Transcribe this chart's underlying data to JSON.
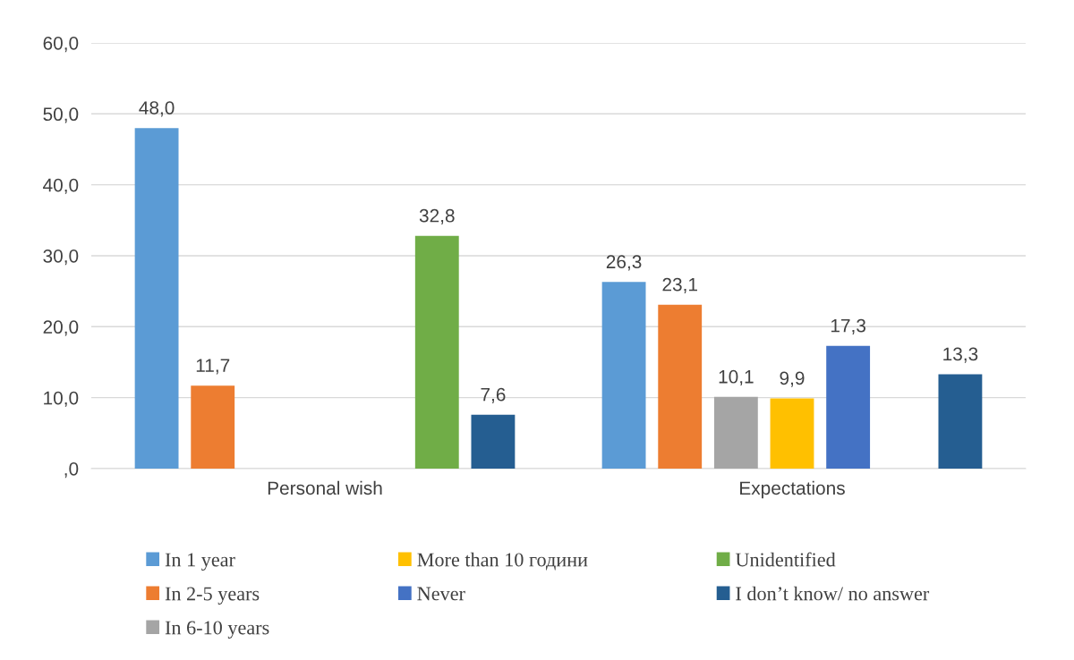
{
  "chart_data": {
    "type": "bar",
    "categories": [
      "Personal wish",
      "Expectations"
    ],
    "series": [
      {
        "name": "In 1 year",
        "color": "#5b9bd5",
        "values": [
          48.0,
          26.3
        ],
        "value_labels": [
          "48,0",
          "26,3"
        ]
      },
      {
        "name": "In 2-5 years",
        "color": "#ed7d31",
        "values": [
          11.7,
          23.1
        ],
        "value_labels": [
          "11,7",
          "23,1"
        ]
      },
      {
        "name": "In 6-10 years",
        "color": "#a5a5a5",
        "values": [
          null,
          10.1
        ],
        "value_labels": [
          null,
          "10,1"
        ]
      },
      {
        "name": "More than 10 години",
        "color": "#ffc000",
        "values": [
          null,
          9.9
        ],
        "value_labels": [
          null,
          "9,9"
        ]
      },
      {
        "name": "Never",
        "color": "#4472c4",
        "values": [
          null,
          17.3
        ],
        "value_labels": [
          null,
          "17,3"
        ]
      },
      {
        "name": "Unidentified",
        "color": "#70ad47",
        "values": [
          32.8,
          null
        ],
        "value_labels": [
          "32,8",
          null
        ]
      },
      {
        "name": "I don’t know/ no answer",
        "color": "#255e91",
        "values": [
          7.6,
          13.3
        ],
        "value_labels": [
          "7,6",
          "13,3"
        ]
      }
    ],
    "ylim": [
      0,
      60
    ],
    "yticks": [
      {
        "value": 0,
        "label": ",0"
      },
      {
        "value": 10,
        "label": "10,0"
      },
      {
        "value": 20,
        "label": "20,0"
      },
      {
        "value": 30,
        "label": "30,0"
      },
      {
        "value": 40,
        "label": "40,0"
      },
      {
        "value": 50,
        "label": "50,0"
      },
      {
        "value": 60,
        "label": "60,0"
      }
    ],
    "grid": "y",
    "legend": "bottom"
  }
}
